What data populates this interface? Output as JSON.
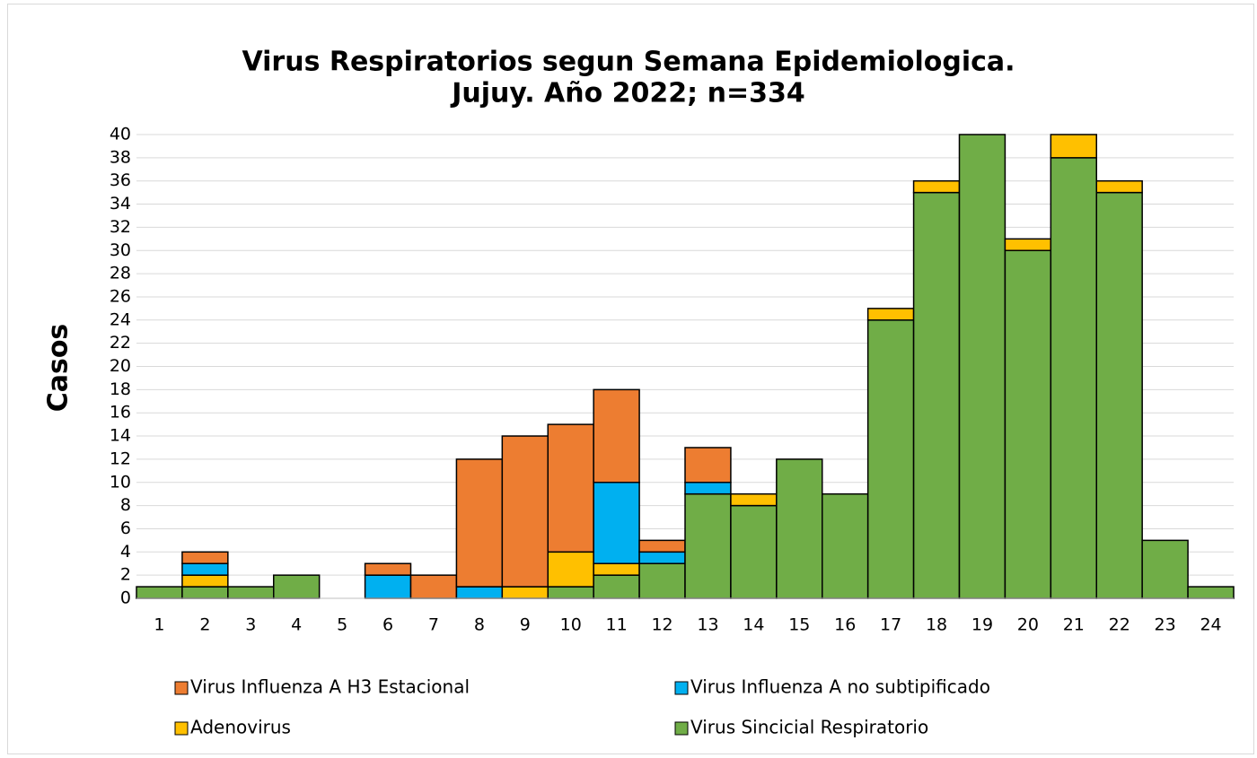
{
  "chart_data": {
    "type": "bar",
    "stacked": true,
    "title": "Virus Respiratorios segun Semana Epidemiologica.",
    "subtitle": "Jujuy. Año 2022; n=334",
    "y_label": "Casos",
    "categories": [
      "1",
      "2",
      "3",
      "4",
      "5",
      "6",
      "7",
      "8",
      "9",
      "10",
      "11",
      "12",
      "13",
      "14",
      "15",
      "16",
      "17",
      "18",
      "19",
      "20",
      "21",
      "22",
      "23",
      "24"
    ],
    "series": [
      {
        "name": "Virus Influenza A H3 Estacional",
        "color": "#ED7D31",
        "values": [
          0,
          1,
          0,
          0,
          0,
          1,
          2,
          11,
          13,
          11,
          8,
          1,
          3,
          0,
          0,
          0,
          0,
          0,
          0,
          0,
          0,
          0,
          0,
          0
        ]
      },
      {
        "name": "Virus Influenza A no subtipificado",
        "color": "#00B0F0",
        "values": [
          0,
          1,
          0,
          0,
          0,
          2,
          0,
          1,
          0,
          0,
          7,
          1,
          1,
          0,
          0,
          0,
          0,
          0,
          0,
          0,
          0,
          0,
          0,
          0
        ]
      },
      {
        "name": "Adenovirus",
        "color": "#FFC000",
        "values": [
          0,
          1,
          0,
          0,
          0,
          0,
          0,
          0,
          1,
          3,
          1,
          0,
          0,
          1,
          0,
          0,
          1,
          1,
          0,
          1,
          2,
          1,
          0,
          0
        ]
      },
      {
        "name": "Virus Sincicial Respiratorio",
        "color": "#70AD47",
        "values": [
          1,
          1,
          1,
          2,
          0,
          0,
          0,
          0,
          0,
          1,
          2,
          3,
          9,
          8,
          12,
          9,
          24,
          35,
          40,
          30,
          38,
          35,
          5,
          1
        ]
      }
    ],
    "ylim": [
      0,
      40
    ],
    "yticks": [
      0,
      2,
      4,
      6,
      8,
      10,
      12,
      14,
      16,
      18,
      20,
      22,
      24,
      26,
      28,
      30,
      32,
      34,
      36,
      38,
      40
    ],
    "grid": true
  }
}
